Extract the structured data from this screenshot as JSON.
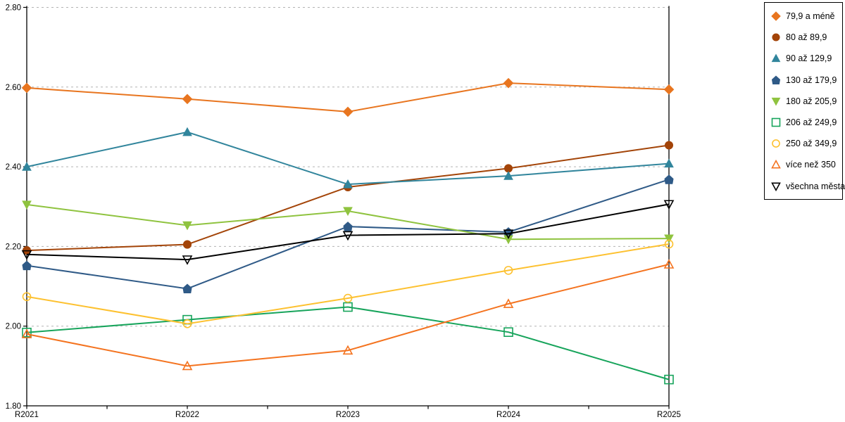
{
  "chart_data": {
    "type": "line",
    "title": "",
    "xlabel": "",
    "ylabel": "",
    "categories": [
      "R2021",
      "R2022",
      "R2023",
      "R2024",
      "R2025"
    ],
    "ylim": [
      1.8,
      2.8
    ],
    "ytick_labels": [
      "1.80",
      "2.00",
      "2.20",
      "2.40",
      "2.60",
      "2.80"
    ],
    "grid": "horizontal-dashed",
    "legend_position": "top-right",
    "series": [
      {
        "name": "79,9 a méně",
        "color": "#E8751F",
        "marker": "diamond",
        "filled": true,
        "values": [
          2.598,
          2.57,
          2.538,
          2.61,
          2.594
        ]
      },
      {
        "name": "80 až 89,9",
        "color": "#A34408",
        "marker": "circle",
        "filled": true,
        "values": [
          2.19,
          2.205,
          2.349,
          2.396,
          2.454
        ]
      },
      {
        "name": "90 až 129,9",
        "color": "#31859C",
        "marker": "triangle-up",
        "filled": true,
        "values": [
          2.4,
          2.487,
          2.356,
          2.377,
          2.408
        ]
      },
      {
        "name": "130 až 179,9",
        "color": "#2F5A87",
        "marker": "pentagon",
        "filled": true,
        "values": [
          2.152,
          2.094,
          2.25,
          2.236,
          2.368
        ]
      },
      {
        "name": "180 až 205,9",
        "color": "#8FC33F",
        "marker": "triangle-down",
        "filled": true,
        "values": [
          2.305,
          2.253,
          2.289,
          2.218,
          2.22
        ]
      },
      {
        "name": "206 až 249,9",
        "color": "#17A45B",
        "marker": "square",
        "filled": false,
        "values": [
          1.984,
          2.016,
          2.048,
          1.985,
          1.866
        ]
      },
      {
        "name": "250 až 349,9",
        "color": "#FDC130",
        "marker": "circle",
        "filled": false,
        "values": [
          2.074,
          2.006,
          2.07,
          2.14,
          2.206
        ]
      },
      {
        "name": "více než 350",
        "color": "#F4731F",
        "marker": "triangle-up",
        "filled": false,
        "values": [
          1.98,
          1.9,
          1.939,
          2.056,
          2.155
        ]
      },
      {
        "name": "všechna města",
        "color": "#000000",
        "marker": "triangle-down",
        "filled": false,
        "values": [
          2.18,
          2.167,
          2.228,
          2.232,
          2.306
        ]
      }
    ]
  }
}
